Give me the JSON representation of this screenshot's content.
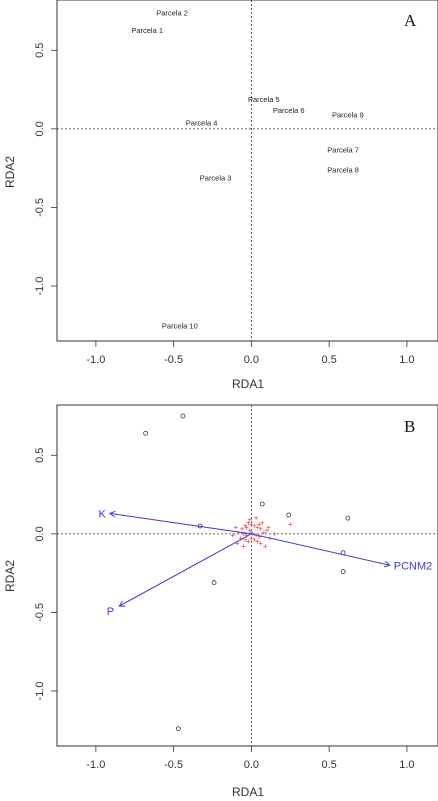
{
  "chart_data": [
    {
      "type": "scatter",
      "panel_label": "A",
      "xlabel": "RDA1",
      "ylabel": "RDA2",
      "xlim": [
        -1.25,
        1.2
      ],
      "ylim": [
        -1.35,
        0.82
      ],
      "xticks": [
        -1.0,
        -0.5,
        0.0,
        0.5,
        1.0
      ],
      "xtick_labels": [
        "-1.0",
        "-0.5",
        "0.0",
        "0.5",
        "1.0"
      ],
      "yticks": [
        -1.0,
        -0.5,
        0.0,
        0.5
      ],
      "ytick_labels": [
        "-1.0",
        "-0.5",
        "0.0",
        "0.5"
      ],
      "zero_lines": true,
      "points": [
        {
          "label": "Parcela 2",
          "x": -0.51,
          "y": 0.74
        },
        {
          "label": "Parcela 1",
          "x": -0.67,
          "y": 0.63
        },
        {
          "label": "Parcela 5",
          "x": 0.08,
          "y": 0.19
        },
        {
          "label": "Parcela 6",
          "x": 0.24,
          "y": 0.12
        },
        {
          "label": "Parcela 9",
          "x": 0.62,
          "y": 0.09
        },
        {
          "label": "Parcela 4",
          "x": -0.32,
          "y": 0.04
        },
        {
          "label": "Parcela 7",
          "x": 0.59,
          "y": -0.13
        },
        {
          "label": "Parcela 8",
          "x": 0.59,
          "y": -0.26
        },
        {
          "label": "Parcela 3",
          "x": -0.23,
          "y": -0.31
        },
        {
          "label": "Parcela 10",
          "x": -0.46,
          "y": -1.25
        }
      ]
    },
    {
      "type": "scatter",
      "panel_label": "B",
      "xlabel": "RDA1",
      "ylabel": "RDA2",
      "xlim": [
        -1.25,
        1.2
      ],
      "ylim": [
        -1.35,
        0.82
      ],
      "xticks": [
        -1.0,
        -0.5,
        0.0,
        0.5,
        1.0
      ],
      "xtick_labels": [
        "-1.0",
        "-0.5",
        "0.0",
        "0.5",
        "1.0"
      ],
      "yticks": [
        -1.0,
        -0.5,
        0.0,
        0.5
      ],
      "ytick_labels": [
        "-1.0",
        "-0.5",
        "0.0",
        "0.5"
      ],
      "zero_lines": true,
      "sites": [
        {
          "x": -0.68,
          "y": 0.64
        },
        {
          "x": -0.44,
          "y": 0.75
        },
        {
          "x": -0.33,
          "y": 0.05
        },
        {
          "x": -0.24,
          "y": -0.31
        },
        {
          "x": 0.07,
          "y": 0.19
        },
        {
          "x": 0.24,
          "y": 0.12
        },
        {
          "x": 0.62,
          "y": 0.1
        },
        {
          "x": 0.59,
          "y": -0.12
        },
        {
          "x": 0.59,
          "y": -0.24
        },
        {
          "x": -0.47,
          "y": -1.24
        }
      ],
      "species": [
        {
          "x": -0.06,
          "y": 0.03
        },
        {
          "x": -0.04,
          "y": 0.05
        },
        {
          "x": -0.02,
          "y": 0.07
        },
        {
          "x": 0.0,
          "y": 0.06
        },
        {
          "x": 0.02,
          "y": 0.05
        },
        {
          "x": 0.04,
          "y": 0.04
        },
        {
          "x": 0.06,
          "y": 0.03
        },
        {
          "x": -0.08,
          "y": 0.01
        },
        {
          "x": -0.05,
          "y": 0.0
        },
        {
          "x": -0.03,
          "y": -0.01
        },
        {
          "x": -0.01,
          "y": 0.02
        },
        {
          "x": 0.01,
          "y": 0.0
        },
        {
          "x": 0.03,
          "y": -0.01
        },
        {
          "x": 0.05,
          "y": -0.02
        },
        {
          "x": 0.08,
          "y": 0.01
        },
        {
          "x": -0.07,
          "y": -0.03
        },
        {
          "x": -0.04,
          "y": -0.04
        },
        {
          "x": -0.02,
          "y": -0.05
        },
        {
          "x": 0.0,
          "y": -0.03
        },
        {
          "x": 0.02,
          "y": -0.04
        },
        {
          "x": 0.04,
          "y": -0.05
        },
        {
          "x": 0.06,
          "y": -0.06
        },
        {
          "x": -0.1,
          "y": 0.04
        },
        {
          "x": 0.1,
          "y": 0.02
        },
        {
          "x": 0.12,
          "y": -0.03
        },
        {
          "x": -0.12,
          "y": -0.01
        },
        {
          "x": 0.15,
          "y": 0.0
        },
        {
          "x": 0.25,
          "y": 0.06
        },
        {
          "x": -0.01,
          "y": 0.09
        },
        {
          "x": 0.03,
          "y": 0.1
        },
        {
          "x": -0.05,
          "y": -0.08
        },
        {
          "x": 0.07,
          "y": 0.07
        },
        {
          "x": -0.09,
          "y": -0.06
        },
        {
          "x": 0.09,
          "y": -0.08
        },
        {
          "x": 0.0,
          "y": 0.01
        },
        {
          "x": -0.03,
          "y": 0.04
        },
        {
          "x": 0.05,
          "y": 0.06
        },
        {
          "x": 0.11,
          "y": 0.04
        }
      ],
      "arrows": [
        {
          "label": "K",
          "x": -0.91,
          "y": 0.13
        },
        {
          "label": "P",
          "x": -0.85,
          "y": -0.46
        },
        {
          "label": "PCNM2",
          "x": 0.89,
          "y": -0.2
        }
      ],
      "colors": {
        "arrow": "#3a3ae0",
        "species": "#e83a3a",
        "sites": "#333333"
      }
    }
  ]
}
